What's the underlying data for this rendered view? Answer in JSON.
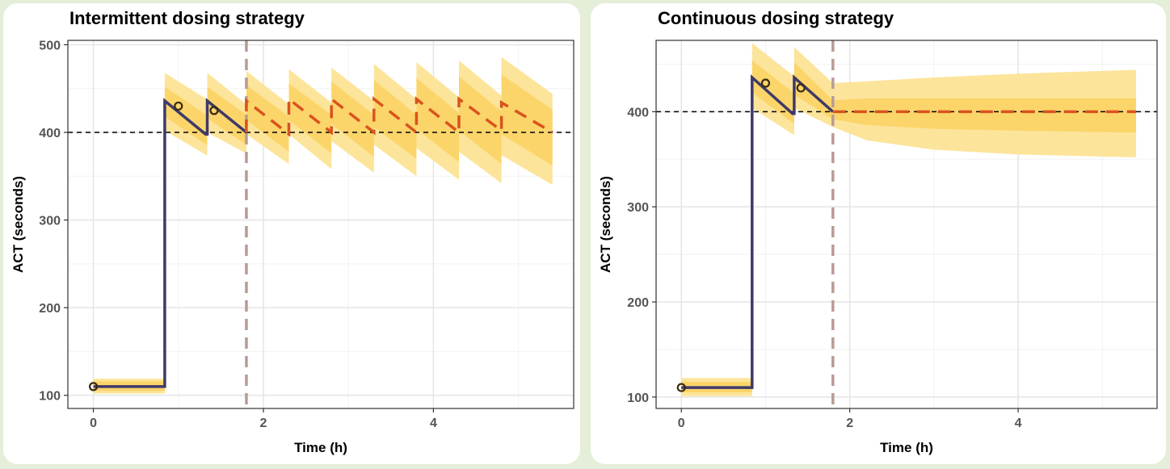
{
  "chart_data": [
    {
      "type": "line",
      "title": "Intermittent dosing strategy",
      "xlabel": "Time (h)",
      "ylabel": "ACT (seconds)",
      "xlim": [
        -0.3,
        5.65
      ],
      "ylim": [
        85,
        505
      ],
      "xticks": [
        0,
        2,
        4
      ],
      "xtick_labels": [
        "0",
        "2",
        "4"
      ],
      "yticks": [
        100,
        200,
        300,
        400,
        500
      ],
      "ytick_labels": [
        "100",
        "200",
        "300",
        "400",
        "500"
      ],
      "grid": true,
      "legend": "none",
      "target_line": 400,
      "cutoff_time": 1.8,
      "colors": {
        "observed": "#3f3a69",
        "predicted": "#d9531e",
        "band_outer": "#fce49a",
        "band_inner": "#fbd56a",
        "cutoff": "#b89b94",
        "target": "#000000",
        "points": "#3b2a0e"
      },
      "observed_line": {
        "x": [
          0,
          0.84,
          0.84,
          1.32,
          1.34,
          1.34,
          1.8
        ],
        "y": [
          110,
          110,
          436,
          398,
          398,
          436,
          400
        ]
      },
      "predicted_line": {
        "x": [
          1.8,
          1.8,
          2.3,
          2.3,
          2.8,
          2.8,
          3.3,
          3.3,
          3.8,
          3.8,
          4.3,
          4.3,
          4.8,
          4.8,
          5.4
        ],
        "y": [
          400,
          436,
          398,
          438,
          400,
          438,
          400,
          438,
          400,
          438,
          400,
          438,
          402,
          434,
          400
        ]
      },
      "band_outer": {
        "x": [
          0,
          0.84,
          0.84,
          1.33,
          1.34,
          1.34,
          1.8,
          1.8,
          2.3,
          2.3,
          2.8,
          2.8,
          3.3,
          3.3,
          3.8,
          3.8,
          4.3,
          4.3,
          4.8,
          4.8,
          5.4
        ],
        "low": [
          102,
          102,
          402,
          374,
          374,
          400,
          376,
          398,
          364,
          398,
          358,
          390,
          354,
          386,
          350,
          382,
          346,
          378,
          342,
          374,
          340
        ],
        "high": [
          119,
          119,
          468,
          438,
          438,
          468,
          432,
          470,
          432,
          472,
          434,
          474,
          436,
          478,
          438,
          480,
          440,
          482,
          442,
          486,
          444
        ]
      },
      "band_inner": {
        "x": [
          0,
          0.84,
          0.84,
          1.33,
          1.34,
          1.34,
          1.8,
          1.8,
          2.3,
          2.3,
          2.8,
          2.8,
          3.3,
          3.3,
          3.8,
          3.8,
          4.3,
          4.3,
          4.8,
          4.8,
          5.4
        ],
        "low": [
          105,
          105,
          418,
          386,
          386,
          416,
          386,
          414,
          378,
          414,
          376,
          410,
          372,
          406,
          370,
          404,
          366,
          402,
          364,
          398,
          362
        ],
        "high": [
          116,
          116,
          452,
          420,
          420,
          452,
          420,
          454,
          418,
          456,
          420,
          458,
          420,
          460,
          420,
          462,
          422,
          464,
          424,
          466,
          426
        ]
      },
      "points": {
        "x": [
          0,
          1.0,
          1.42
        ],
        "y": [
          110,
          430,
          425
        ]
      }
    },
    {
      "type": "line",
      "title": "Continuous dosing strategy",
      "xlabel": "Time (h)",
      "ylabel": "ACT (seconds)",
      "xlim": [
        -0.3,
        5.65
      ],
      "ylim": [
        88,
        475
      ],
      "xticks": [
        0,
        2,
        4
      ],
      "xtick_labels": [
        "0",
        "2",
        "4"
      ],
      "yticks": [
        100,
        200,
        300,
        400
      ],
      "ytick_labels": [
        "100",
        "200",
        "300",
        "400"
      ],
      "grid": true,
      "legend": "none",
      "target_line": 400,
      "cutoff_time": 1.8,
      "colors": {
        "observed": "#3f3a69",
        "predicted": "#d9531e",
        "band_outer": "#fce49a",
        "band_inner": "#fbd56a",
        "cutoff": "#b89b94",
        "target": "#000000",
        "points": "#3b2a0e"
      },
      "observed_line": {
        "x": [
          0,
          0.84,
          0.84,
          1.32,
          1.34,
          1.34,
          1.8
        ],
        "y": [
          110,
          110,
          436,
          398,
          398,
          436,
          400
        ]
      },
      "predicted_line": {
        "x": [
          1.8,
          5.4
        ],
        "y": [
          400,
          400
        ]
      },
      "band_outer": {
        "x": [
          0,
          0.84,
          0.84,
          1.33,
          1.34,
          1.34,
          1.8,
          2.2,
          3.0,
          4.0,
          5.4
        ],
        "low": [
          101,
          101,
          404,
          376,
          376,
          404,
          384,
          370,
          360,
          355,
          352
        ],
        "high": [
          120,
          120,
          472,
          438,
          438,
          468,
          430,
          432,
          436,
          440,
          444
        ]
      },
      "band_inner": {
        "x": [
          0,
          0.84,
          0.84,
          1.33,
          1.34,
          1.34,
          1.8,
          2.2,
          3.0,
          4.0,
          5.4
        ],
        "low": [
          105,
          105,
          420,
          388,
          388,
          418,
          392,
          386,
          382,
          380,
          378
        ],
        "high": [
          116,
          116,
          454,
          420,
          420,
          452,
          412,
          414,
          414,
          414,
          414
        ]
      },
      "points": {
        "x": [
          0,
          1.0,
          1.42
        ],
        "y": [
          110,
          430,
          425
        ]
      }
    }
  ]
}
